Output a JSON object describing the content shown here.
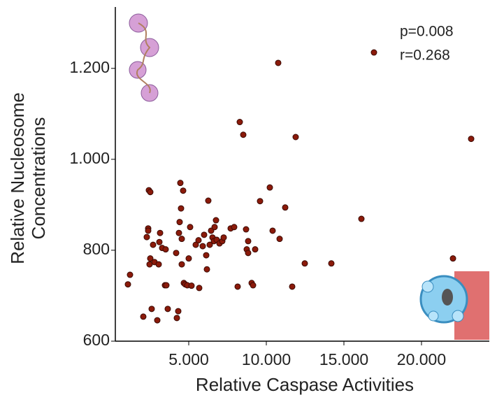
{
  "chart_data": {
    "type": "scatter",
    "x_label": "Relative Caspase Activities",
    "y_label": [
      "Relative Nucleosome",
      "Concentrations"
    ],
    "annotations": [
      "p=0.008",
      "r=0.268"
    ],
    "color": "#8b1a0a",
    "xlim": [
      270,
      24370
    ],
    "ylim": [
      600,
      1335
    ],
    "xticks": [
      {
        "value": 5000,
        "label": "5.000"
      },
      {
        "value": 10000,
        "label": "10.000"
      },
      {
        "value": 15000,
        "label": "15.000"
      },
      {
        "value": 20000,
        "label": "20.000"
      }
    ],
    "yticks": [
      600,
      800,
      {
        "value": 1000,
        "label": "1.000"
      },
      {
        "value": 1200,
        "label": "1.200"
      }
    ],
    "x": [
      1081,
      1216,
      2072,
      2387,
      2432,
      2522,
      2297,
      2387,
      2477,
      2522,
      2612,
      2702,
      2793,
      2973,
      3063,
      3108,
      3153,
      3288,
      3468,
      3558,
      3648,
      3513,
      4189,
      4234,
      4324,
      4369,
      4414,
      4459,
      4550,
      4504,
      4640,
      4550,
      4685,
      4775,
      4910,
      5000,
      5180,
      5090,
      5451,
      5631,
      5676,
      5901,
      5991,
      6126,
      6261,
      6171,
      6352,
      6442,
      6532,
      6622,
      6667,
      6757,
      6802,
      6982,
      7162,
      7253,
      7703,
      7928,
      8153,
      8289,
      8514,
      8694,
      8829,
      8739,
      8829,
      9055,
      9145,
      9280,
      9595,
      10226,
      10406,
      10766,
      10857,
      11217,
      11667,
      11892,
      12478,
      14190,
      16127,
      16937,
      22029,
      23200
    ],
    "y": [
      725,
      746,
      654,
      848,
      932,
      928,
      829,
      843,
      769,
      782,
      671,
      812,
      774,
      646,
      769,
      818,
      838,
      805,
      723,
      723,
      671,
      802,
      794,
      651,
      666,
      838,
      862,
      948,
      769,
      892,
      931,
      825,
      728,
      725,
      723,
      782,
      722,
      851,
      812,
      822,
      717,
      809,
      834,
      789,
      909,
      758,
      812,
      843,
      828,
      820,
      851,
      866,
      823,
      815,
      820,
      828,
      848,
      851,
      720,
      1082,
      1054,
      846,
      820,
      802,
      794,
      728,
      723,
      802,
      908,
      938,
      843,
      1212,
      825,
      894,
      720,
      1049,
      771,
      771,
      869,
      1235,
      782,
      1045
    ]
  }
}
